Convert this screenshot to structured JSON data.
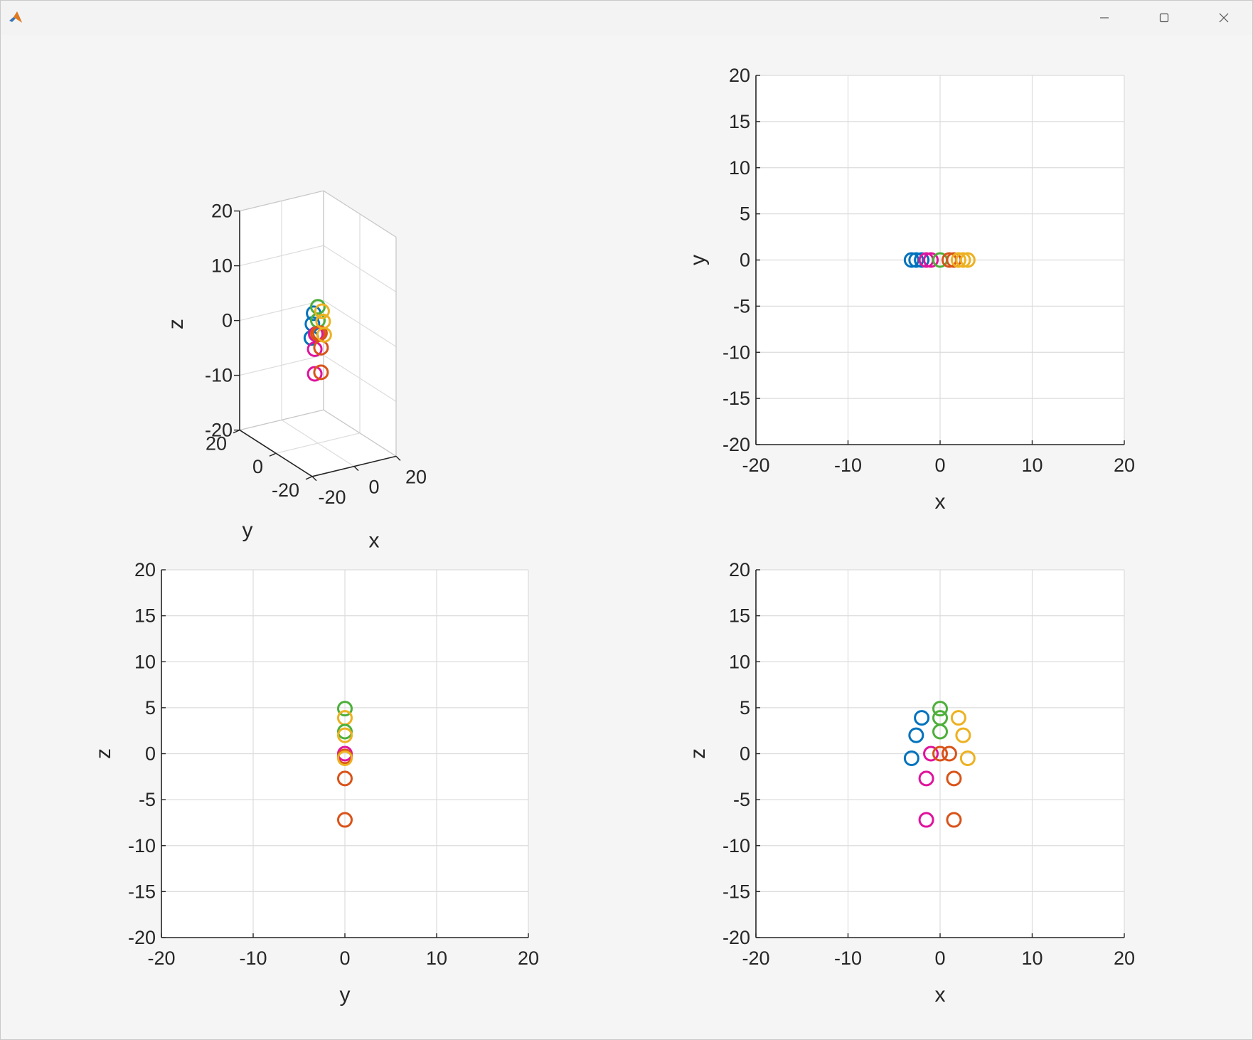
{
  "window": {
    "icons": {
      "app": "matlab-logo-icon",
      "minimize": "minimize-icon",
      "maximize": "maximize-icon",
      "close": "close-icon"
    }
  },
  "colors": {
    "blue": "#0072BD",
    "orange": "#D95319",
    "yellow": "#EDB120",
    "green": "#4DAF3A",
    "magenta": "#E0139C",
    "grid": "#dcdcdc",
    "axis": "#262626"
  },
  "chart_data": [
    {
      "type": "scatter",
      "view": "3d",
      "xlabel": "x",
      "ylabel": "y",
      "zlabel": "z",
      "xlim": [
        -20,
        20
      ],
      "ylim": [
        -20,
        20
      ],
      "zlim": [
        -20,
        20
      ],
      "xticks": [
        -20,
        0,
        20
      ],
      "yticks": [
        -20,
        0,
        20
      ],
      "zticks": [
        -20,
        -10,
        0,
        10,
        20
      ],
      "grid": true,
      "points": [
        {
          "x": 0,
          "y": 0,
          "z": 4.9,
          "color": "green"
        },
        {
          "x": 0,
          "y": 0,
          "z": 2.4,
          "color": "green"
        },
        {
          "x": -2,
          "y": 0,
          "z": 3.9,
          "color": "blue"
        },
        {
          "x": -2.6,
          "y": 0,
          "z": 2.0,
          "color": "blue"
        },
        {
          "x": -3.1,
          "y": 0,
          "z": -0.5,
          "color": "blue"
        },
        {
          "x": 2,
          "y": 0,
          "z": 3.9,
          "color": "yellow"
        },
        {
          "x": 2.5,
          "y": 0,
          "z": 2.0,
          "color": "yellow"
        },
        {
          "x": 3,
          "y": 0,
          "z": -0.5,
          "color": "yellow"
        },
        {
          "x": -1,
          "y": 0,
          "z": 0,
          "color": "magenta"
        },
        {
          "x": 0,
          "y": 0,
          "z": 0,
          "color": "orange"
        },
        {
          "x": 1,
          "y": 0,
          "z": 0,
          "color": "orange"
        },
        {
          "x": -1.5,
          "y": 0,
          "z": -2.7,
          "color": "magenta"
        },
        {
          "x": -1.5,
          "y": 0,
          "z": -7.2,
          "color": "magenta"
        },
        {
          "x": 1.5,
          "y": 0,
          "z": -2.7,
          "color": "orange"
        },
        {
          "x": 1.5,
          "y": 0,
          "z": -7.2,
          "color": "orange"
        }
      ]
    },
    {
      "type": "scatter",
      "view": "xy",
      "xlabel": "x",
      "ylabel": "y",
      "xlim": [
        -20,
        20
      ],
      "ylim": [
        -20,
        20
      ],
      "xticks": [
        -20,
        -10,
        0,
        10,
        20
      ],
      "yticks": [
        -20,
        -15,
        -10,
        -5,
        0,
        5,
        10,
        15,
        20
      ],
      "grid": true,
      "points": [
        {
          "x": -3.1,
          "y": 0,
          "color": "blue"
        },
        {
          "x": -2.6,
          "y": 0,
          "color": "blue"
        },
        {
          "x": -2,
          "y": 0,
          "color": "blue"
        },
        {
          "x": -1.5,
          "y": 0,
          "color": "magenta"
        },
        {
          "x": -1,
          "y": 0,
          "color": "magenta"
        },
        {
          "x": 0,
          "y": 0,
          "color": "green"
        },
        {
          "x": 1,
          "y": 0,
          "color": "orange"
        },
        {
          "x": 1.5,
          "y": 0,
          "color": "orange"
        },
        {
          "x": 2,
          "y": 0,
          "color": "yellow"
        },
        {
          "x": 2.5,
          "y": 0,
          "color": "yellow"
        },
        {
          "x": 3,
          "y": 0,
          "color": "yellow"
        }
      ]
    },
    {
      "type": "scatter",
      "view": "yz",
      "xlabel": "y",
      "ylabel": "z",
      "xlim": [
        -20,
        20
      ],
      "ylim": [
        -20,
        20
      ],
      "xticks": [
        -20,
        -10,
        0,
        10,
        20
      ],
      "yticks": [
        -20,
        -15,
        -10,
        -5,
        0,
        5,
        10,
        15,
        20
      ],
      "grid": true,
      "points": [
        {
          "x": 0,
          "y": 4.9,
          "color": "green"
        },
        {
          "x": 0,
          "y": 3.9,
          "color": "yellow"
        },
        {
          "x": 0,
          "y": 2.4,
          "color": "green"
        },
        {
          "x": 0,
          "y": 2.0,
          "color": "yellow"
        },
        {
          "x": 0,
          "y": 0,
          "color": "magenta"
        },
        {
          "x": 0,
          "y": -0.3,
          "color": "orange"
        },
        {
          "x": 0,
          "y": -0.5,
          "color": "yellow"
        },
        {
          "x": 0,
          "y": -2.7,
          "color": "orange"
        },
        {
          "x": 0,
          "y": -7.2,
          "color": "orange"
        }
      ]
    },
    {
      "type": "scatter",
      "view": "xz",
      "xlabel": "x",
      "ylabel": "z",
      "xlim": [
        -20,
        20
      ],
      "ylim": [
        -20,
        20
      ],
      "xticks": [
        -20,
        -10,
        0,
        10,
        20
      ],
      "yticks": [
        -20,
        -15,
        -10,
        -5,
        0,
        5,
        10,
        15,
        20
      ],
      "grid": true,
      "points": [
        {
          "x": 0,
          "y": 4.9,
          "color": "green"
        },
        {
          "x": 0,
          "y": 3.9,
          "color": "green"
        },
        {
          "x": 0,
          "y": 2.4,
          "color": "green"
        },
        {
          "x": -2,
          "y": 3.9,
          "color": "blue"
        },
        {
          "x": -2.6,
          "y": 2.0,
          "color": "blue"
        },
        {
          "x": -3.1,
          "y": -0.5,
          "color": "blue"
        },
        {
          "x": 2,
          "y": 3.9,
          "color": "yellow"
        },
        {
          "x": 2.5,
          "y": 2.0,
          "color": "yellow"
        },
        {
          "x": 3,
          "y": -0.5,
          "color": "yellow"
        },
        {
          "x": -1,
          "y": 0,
          "color": "magenta"
        },
        {
          "x": 0,
          "y": 0,
          "color": "orange"
        },
        {
          "x": 1,
          "y": 0,
          "color": "orange"
        },
        {
          "x": -1.5,
          "y": -2.7,
          "color": "magenta"
        },
        {
          "x": -1.5,
          "y": -7.2,
          "color": "magenta"
        },
        {
          "x": 1.5,
          "y": -2.7,
          "color": "orange"
        },
        {
          "x": 1.5,
          "y": -7.2,
          "color": "orange"
        }
      ]
    }
  ]
}
